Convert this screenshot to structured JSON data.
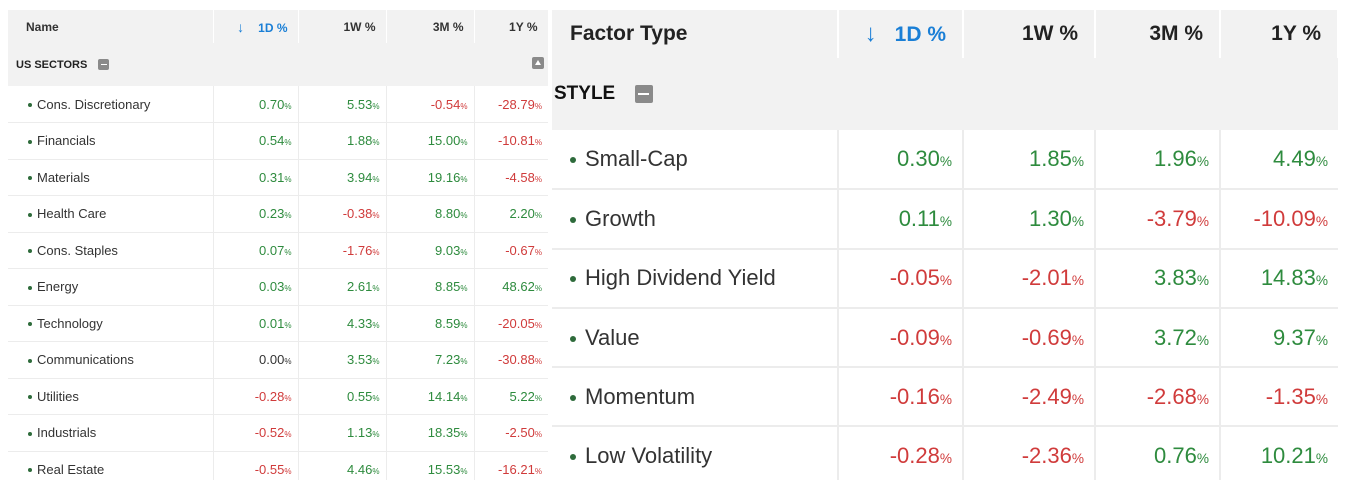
{
  "left_table": {
    "headers": {
      "name": "Name",
      "d1": "1D %",
      "w1": "1W %",
      "m3": "3M %",
      "y1": "1Y %"
    },
    "group_label": "US SECTORS",
    "rows": [
      {
        "name": "Cons. Discretionary",
        "d1": "0.70",
        "w1": "5.53",
        "m3": "-0.54",
        "y1": "-28.79"
      },
      {
        "name": "Financials",
        "d1": "0.54",
        "w1": "1.88",
        "m3": "15.00",
        "y1": "-10.81"
      },
      {
        "name": "Materials",
        "d1": "0.31",
        "w1": "3.94",
        "m3": "19.16",
        "y1": "-4.58"
      },
      {
        "name": "Health Care",
        "d1": "0.23",
        "w1": "-0.38",
        "m3": "8.80",
        "y1": "2.20"
      },
      {
        "name": "Cons. Staples",
        "d1": "0.07",
        "w1": "-1.76",
        "m3": "9.03",
        "y1": "-0.67"
      },
      {
        "name": "Energy",
        "d1": "0.03",
        "w1": "2.61",
        "m3": "8.85",
        "y1": "48.62"
      },
      {
        "name": "Technology",
        "d1": "0.01",
        "w1": "4.33",
        "m3": "8.59",
        "y1": "-20.05"
      },
      {
        "name": "Communications",
        "d1": "0.00",
        "w1": "3.53",
        "m3": "7.23",
        "y1": "-30.88"
      },
      {
        "name": "Utilities",
        "d1": "-0.28",
        "w1": "0.55",
        "m3": "14.14",
        "y1": "5.22"
      },
      {
        "name": "Industrials",
        "d1": "-0.52",
        "w1": "1.13",
        "m3": "18.35",
        "y1": "-2.50"
      },
      {
        "name": "Real Estate",
        "d1": "-0.55",
        "w1": "4.46",
        "m3": "15.53",
        "y1": "-16.21"
      }
    ]
  },
  "right_table": {
    "headers": {
      "name": "Factor Type",
      "d1": "1D %",
      "w1": "1W %",
      "m3": "3M %",
      "y1": "1Y %"
    },
    "group_label": "STYLE",
    "rows": [
      {
        "name": "Small-Cap",
        "d1": "0.30",
        "w1": "1.85",
        "m3": "1.96",
        "y1": "4.49"
      },
      {
        "name": "Growth",
        "d1": "0.11",
        "w1": "1.30",
        "m3": "-3.79",
        "y1": "-10.09"
      },
      {
        "name": "High Dividend Yield",
        "d1": "-0.05",
        "w1": "-2.01",
        "m3": "3.83",
        "y1": "14.83"
      },
      {
        "name": "Value",
        "d1": "-0.09",
        "w1": "-0.69",
        "m3": "3.72",
        "y1": "9.37"
      },
      {
        "name": "Momentum",
        "d1": "-0.16",
        "w1": "-2.49",
        "m3": "-2.68",
        "y1": "-1.35"
      },
      {
        "name": "Low Volatility",
        "d1": "-0.28",
        "w1": "-2.36",
        "m3": "0.76",
        "y1": "10.21"
      }
    ]
  },
  "sort": {
    "arrow": "↓",
    "column": "d1"
  },
  "pct_suffix": "%",
  "colors": {
    "positive": "#2e8b3e",
    "negative": "#d03b3b",
    "sort_accent": "#1a7fd6",
    "header_bg": "#f2f2f2"
  }
}
